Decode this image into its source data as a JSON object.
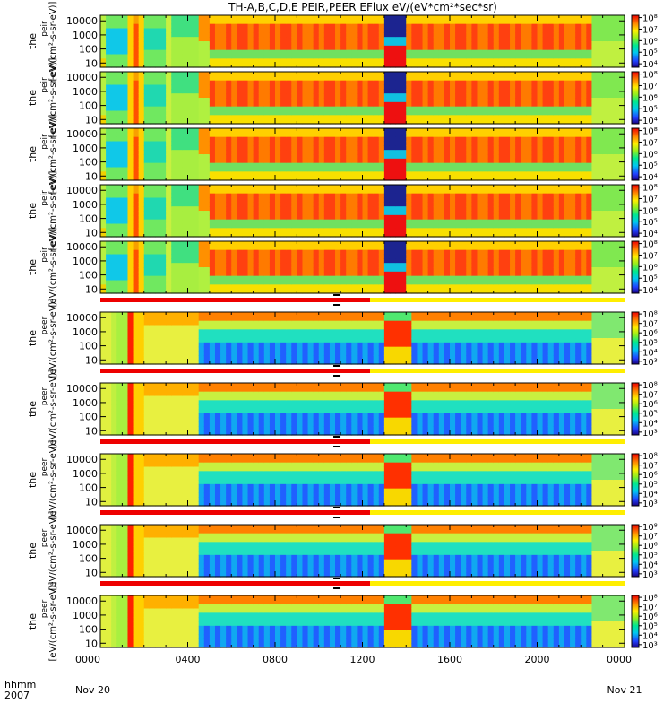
{
  "chart_data": {
    "type": "heatmap",
    "title": "TH-A,B,C,D,E PEIR,PEER EFlux eV/(eV*cm²*sec*sr)",
    "x_axis": {
      "unit": "hhmm",
      "year_label": "hhmm",
      "year": "2007",
      "range_hours": [
        0,
        24
      ],
      "ticks": [
        {
          "hour": 0,
          "label": "0000"
        },
        {
          "hour": 4,
          "label": "0400"
        },
        {
          "hour": 8,
          "label": "0800"
        },
        {
          "hour": 12,
          "label": "1200"
        },
        {
          "hour": 16,
          "label": "1600"
        },
        {
          "hour": 20,
          "label": "2000"
        },
        {
          "hour": 24,
          "label": "0000"
        }
      ],
      "start_date": "Nov 20",
      "end_date": "Nov 21"
    },
    "y_axis": {
      "scale": "log",
      "range": [
        5,
        25000
      ],
      "ticks": [
        {
          "value": 10,
          "label": "10"
        },
        {
          "value": 100,
          "label": "100"
        },
        {
          "value": 1000,
          "label": "1000"
        },
        {
          "value": 10000,
          "label": "10000"
        }
      ]
    },
    "panels": [
      {
        "species": "ion",
        "ylabel_1": "the",
        "ylabel_2": "peir",
        "ylabel_3": "[eV/(cm²-s-sr-eV)]",
        "colorbar_ticks": [
          {
            "exp": 4,
            "label": "10⁴"
          },
          {
            "exp": 5,
            "label": "10⁵"
          },
          {
            "exp": 6,
            "label": "10⁶"
          },
          {
            "exp": 7,
            "label": "10⁷"
          },
          {
            "exp": 8,
            "label": "10⁸"
          }
        ]
      },
      {
        "species": "ion",
        "ylabel_1": "the",
        "ylabel_2": "peir",
        "ylabel_3": "[eV/(cm²-s-sr-eV)]",
        "colorbar_ticks": [
          {
            "exp": 4,
            "label": "10⁴"
          },
          {
            "exp": 5,
            "label": "10⁵"
          },
          {
            "exp": 6,
            "label": "10⁶"
          },
          {
            "exp": 7,
            "label": "10⁷"
          },
          {
            "exp": 8,
            "label": "10⁸"
          }
        ]
      },
      {
        "species": "ion",
        "ylabel_1": "the",
        "ylabel_2": "peir",
        "ylabel_3": "[eV/(cm²-s-sr-eV)]",
        "colorbar_ticks": [
          {
            "exp": 4,
            "label": "10⁴"
          },
          {
            "exp": 5,
            "label": "10⁵"
          },
          {
            "exp": 6,
            "label": "10⁶"
          },
          {
            "exp": 7,
            "label": "10⁷"
          },
          {
            "exp": 8,
            "label": "10⁸"
          }
        ]
      },
      {
        "species": "ion",
        "ylabel_1": "the",
        "ylabel_2": "peir",
        "ylabel_3": "[eV/(cm²-s-sr-eV)]",
        "colorbar_ticks": [
          {
            "exp": 4,
            "label": "10⁴"
          },
          {
            "exp": 5,
            "label": "10⁵"
          },
          {
            "exp": 6,
            "label": "10⁶"
          },
          {
            "exp": 7,
            "label": "10⁷"
          },
          {
            "exp": 8,
            "label": "10⁸"
          }
        ]
      },
      {
        "species": "ion",
        "ylabel_1": "the",
        "ylabel_2": "peir",
        "ylabel_3": "[eV/(cm²-s-sr-eV)]",
        "colorbar_ticks": [
          {
            "exp": 4,
            "label": "10⁴"
          },
          {
            "exp": 5,
            "label": "10⁵"
          },
          {
            "exp": 6,
            "label": "10⁶"
          },
          {
            "exp": 7,
            "label": "10⁷"
          },
          {
            "exp": 8,
            "label": "10⁸"
          }
        ]
      },
      {
        "species": "electron",
        "ylabel_1": "the",
        "ylabel_2": "peer",
        "ylabel_3": "[eV/(cm²-s-sr-eV)]",
        "colorbar_ticks": [
          {
            "exp": 3,
            "label": "10³"
          },
          {
            "exp": 4,
            "label": "10⁴"
          },
          {
            "exp": 5,
            "label": "10⁵"
          },
          {
            "exp": 6,
            "label": "10⁶"
          },
          {
            "exp": 7,
            "label": "10⁷"
          },
          {
            "exp": 8,
            "label": "10⁸"
          }
        ]
      },
      {
        "species": "electron",
        "ylabel_1": "the",
        "ylabel_2": "peer",
        "ylabel_3": "[eV/(cm²-s-sr-eV)]",
        "colorbar_ticks": [
          {
            "exp": 3,
            "label": "10³"
          },
          {
            "exp": 4,
            "label": "10⁴"
          },
          {
            "exp": 5,
            "label": "10⁵"
          },
          {
            "exp": 6,
            "label": "10⁶"
          },
          {
            "exp": 7,
            "label": "10⁷"
          },
          {
            "exp": 8,
            "label": "10⁸"
          }
        ]
      },
      {
        "species": "electron",
        "ylabel_1": "the",
        "ylabel_2": "peer",
        "ylabel_3": "[eV/(cm²-s-sr-eV)]",
        "colorbar_ticks": [
          {
            "exp": 3,
            "label": "10³"
          },
          {
            "exp": 4,
            "label": "10⁴"
          },
          {
            "exp": 5,
            "label": "10⁵"
          },
          {
            "exp": 6,
            "label": "10⁶"
          },
          {
            "exp": 7,
            "label": "10⁷"
          },
          {
            "exp": 8,
            "label": "10⁸"
          }
        ]
      },
      {
        "species": "electron",
        "ylabel_1": "the",
        "ylabel_2": "peer",
        "ylabel_3": "[eV/(cm²-s-sr-eV)]",
        "colorbar_ticks": [
          {
            "exp": 3,
            "label": "10³"
          },
          {
            "exp": 4,
            "label": "10⁴"
          },
          {
            "exp": 5,
            "label": "10⁵"
          },
          {
            "exp": 6,
            "label": "10⁶"
          },
          {
            "exp": 7,
            "label": "10⁷"
          },
          {
            "exp": 8,
            "label": "10⁸"
          }
        ]
      },
      {
        "species": "electron",
        "ylabel_1": "the",
        "ylabel_2": "peer",
        "ylabel_3": "[eV/(cm²-s-sr-eV)]",
        "colorbar_ticks": [
          {
            "exp": 3,
            "label": "10³"
          },
          {
            "exp": 4,
            "label": "10⁴"
          },
          {
            "exp": 5,
            "label": "10⁵"
          },
          {
            "exp": 6,
            "label": "10⁶"
          },
          {
            "exp": 7,
            "label": "10⁷"
          },
          {
            "exp": 8,
            "label": "10⁸"
          }
        ]
      }
    ],
    "mode_bar": {
      "red_start_hour": 0,
      "red_end_hour": 12.35,
      "yellow_start_hour": 12.35,
      "yellow_end_hour": 24,
      "red_color": "#ee0000",
      "yellow_color": "#ffee00"
    },
    "features": {
      "ion_gap_hours": [
        13.0,
        13.9
      ],
      "ion_gap_ylim": [
        1800,
        20000
      ],
      "gap_color": "#202890"
    }
  }
}
